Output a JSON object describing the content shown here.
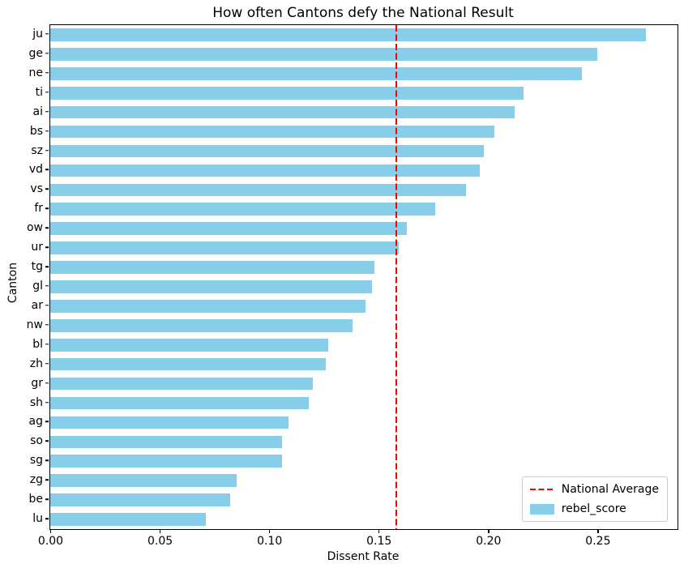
{
  "chart_data": {
    "type": "bar",
    "orientation": "horizontal",
    "title": "How often Cantons defy the National Result",
    "xlabel": "Dissent Rate",
    "ylabel": "Canton",
    "series_name": "rebel_score",
    "categories": [
      "ju",
      "ge",
      "ne",
      "ti",
      "ai",
      "bs",
      "sz",
      "vd",
      "vs",
      "fr",
      "ow",
      "ur",
      "tg",
      "gl",
      "ar",
      "nw",
      "bl",
      "zh",
      "gr",
      "sh",
      "ag",
      "so",
      "sg",
      "zg",
      "be",
      "lu"
    ],
    "values": [
      0.272,
      0.25,
      0.243,
      0.216,
      0.212,
      0.203,
      0.198,
      0.196,
      0.19,
      0.176,
      0.163,
      0.159,
      0.148,
      0.147,
      0.144,
      0.138,
      0.127,
      0.126,
      0.12,
      0.118,
      0.109,
      0.106,
      0.106,
      0.085,
      0.082,
      0.071
    ],
    "reference_line": {
      "label": "National Average",
      "value": 0.158,
      "color": "#ff0000",
      "style": "dashed"
    },
    "xlim": [
      0,
      0.2865
    ],
    "xticks": [
      0,
      0.05,
      0.1,
      0.15,
      0.2,
      0.25
    ],
    "xtick_labels": [
      "0.00",
      "0.05",
      "0.10",
      "0.15",
      "0.20",
      "0.25"
    ],
    "bar_color": "#87CEEB",
    "grid": false,
    "legend_position": "lower right",
    "legend": [
      {
        "label": "National Average",
        "type": "dashed-line"
      },
      {
        "label": "rebel_score",
        "type": "patch"
      }
    ]
  }
}
